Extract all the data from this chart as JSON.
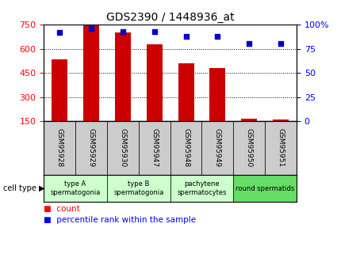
{
  "title": "GDS2390 / 1448936_at",
  "samples": [
    "GSM95928",
    "GSM95929",
    "GSM95930",
    "GSM95947",
    "GSM95948",
    "GSM95949",
    "GSM95950",
    "GSM95951"
  ],
  "counts": [
    535,
    745,
    700,
    625,
    510,
    480,
    165,
    162
  ],
  "percentiles": [
    92,
    96,
    93,
    93,
    88,
    88,
    80,
    80
  ],
  "cell_types": [
    {
      "label": "type A\nspermatogonia",
      "span": [
        0,
        2
      ],
      "color": "#ccffcc"
    },
    {
      "label": "type B\nspermatogonia",
      "span": [
        2,
        4
      ],
      "color": "#ccffcc"
    },
    {
      "label": "pachytene\nspermatocytes",
      "span": [
        4,
        6
      ],
      "color": "#ccffcc"
    },
    {
      "label": "round spermatids",
      "span": [
        6,
        8
      ],
      "color": "#66dd66"
    }
  ],
  "bar_color": "#cc0000",
  "dot_color": "#0000cc",
  "ylim_left": [
    150,
    750
  ],
  "yticks_left": [
    150,
    300,
    450,
    600,
    750
  ],
  "ylim_right": [
    0,
    100
  ],
  "yticks_right": [
    0,
    25,
    50,
    75,
    100
  ],
  "bar_width": 0.5,
  "dot_size": 25,
  "label_bg": "#cccccc",
  "fig_width": 4.25,
  "fig_height": 3.45
}
